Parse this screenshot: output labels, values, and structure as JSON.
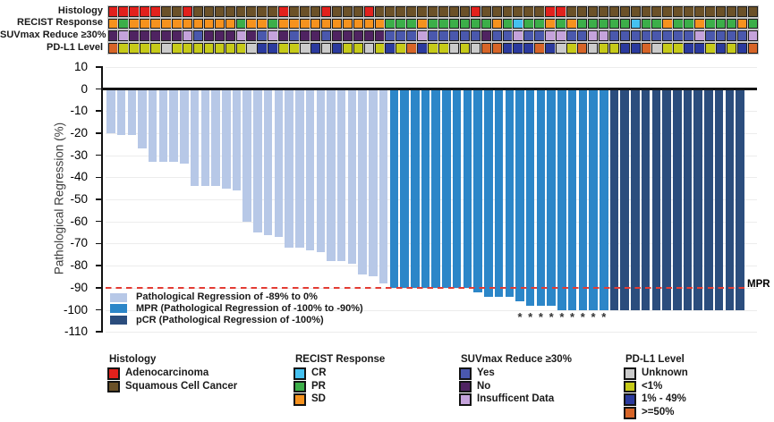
{
  "palette": {
    "adeno": "#E2211C",
    "squam": "#6B5128",
    "cr": "#45C1F0",
    "pr": "#3CAE49",
    "sd": "#F6921E",
    "suv_yes": "#4A58AD",
    "suv_no": "#4F2361",
    "suv_insuf": "#C5A3DB",
    "pdl1_unknown": "#CBCBCB",
    "pdl1_lt1": "#C6CA19",
    "pdl1_1_49": "#2B3A9E",
    "pdl1_ge50": "#D76528",
    "bar_light": "#B7C8E7",
    "bar_mpr": "#2C86C8",
    "bar_pcr": "#2B4D7D"
  },
  "tracks": {
    "rows": [
      {
        "id": "histology",
        "label": "Histology",
        "cells": [
          "adeno",
          "adeno",
          "adeno",
          "adeno",
          "adeno",
          "squam",
          "squam",
          "adeno",
          "squam",
          "squam",
          "squam",
          "squam",
          "squam",
          "squam",
          "squam",
          "squam",
          "adeno",
          "squam",
          "squam",
          "squam",
          "adeno",
          "squam",
          "squam",
          "squam",
          "adeno",
          "squam",
          "squam",
          "squam",
          "squam",
          "squam",
          "squam",
          "squam",
          "squam",
          "squam",
          "adeno",
          "squam",
          "squam",
          "squam",
          "squam",
          "squam",
          "squam",
          "adeno",
          "adeno",
          "squam",
          "squam",
          "squam",
          "squam",
          "squam",
          "squam",
          "squam",
          "squam",
          "squam",
          "squam",
          "squam",
          "squam",
          "squam",
          "squam",
          "squam",
          "squam",
          "squam",
          "squam"
        ]
      },
      {
        "id": "recist",
        "label": "RECIST Response",
        "cells": [
          "sd",
          "pr",
          "sd",
          "sd",
          "sd",
          "sd",
          "sd",
          "sd",
          "sd",
          "sd",
          "sd",
          "sd",
          "pr",
          "sd",
          "sd",
          "pr",
          "sd",
          "sd",
          "sd",
          "sd",
          "sd",
          "sd",
          "sd",
          "sd",
          "sd",
          "sd",
          "pr",
          "pr",
          "pr",
          "sd",
          "pr",
          "pr",
          "pr",
          "pr",
          "pr",
          "pr",
          "sd",
          "pr",
          "cr",
          "pr",
          "pr",
          "sd",
          "pr",
          "sd",
          "pr",
          "pr",
          "pr",
          "pr",
          "pr",
          "cr",
          "pr",
          "pr",
          "sd",
          "pr",
          "pr",
          "sd",
          "pr",
          "pr",
          "pr",
          "sd",
          "pr"
        ]
      },
      {
        "id": "suvmax",
        "label": "SUVmax Reduce ≥30%",
        "cells": [
          "suv_no",
          "suv_insuf",
          "suv_no",
          "suv_no",
          "suv_no",
          "suv_no",
          "suv_no",
          "suv_insuf",
          "suv_yes",
          "suv_no",
          "suv_no",
          "suv_no",
          "suv_insuf",
          "suv_no",
          "suv_yes",
          "suv_insuf",
          "suv_no",
          "suv_yes",
          "suv_no",
          "suv_no",
          "suv_yes",
          "suv_no",
          "suv_no",
          "suv_no",
          "suv_no",
          "suv_no",
          "suv_yes",
          "suv_yes",
          "suv_yes",
          "suv_insuf",
          "suv_yes",
          "suv_yes",
          "suv_yes",
          "suv_yes",
          "suv_yes",
          "suv_no",
          "suv_yes",
          "suv_yes",
          "suv_insuf",
          "suv_yes",
          "suv_yes",
          "suv_insuf",
          "suv_insuf",
          "suv_yes",
          "suv_yes",
          "suv_insuf",
          "suv_insuf",
          "suv_yes",
          "suv_yes",
          "suv_yes",
          "suv_yes",
          "suv_yes",
          "suv_yes",
          "suv_yes",
          "suv_yes",
          "suv_insuf",
          "suv_yes",
          "suv_yes",
          "suv_yes",
          "suv_yes",
          "suv_insuf"
        ]
      },
      {
        "id": "pdl1",
        "label": "PD-L1 Level",
        "cells": [
          "pdl1_ge50",
          "pdl1_lt1",
          "pdl1_lt1",
          "pdl1_lt1",
          "pdl1_lt1",
          "pdl1_unknown",
          "pdl1_lt1",
          "pdl1_lt1",
          "pdl1_lt1",
          "pdl1_lt1",
          "pdl1_lt1",
          "pdl1_lt1",
          "pdl1_lt1",
          "pdl1_unknown",
          "pdl1_1_49",
          "pdl1_1_49",
          "pdl1_lt1",
          "pdl1_lt1",
          "pdl1_unknown",
          "pdl1_1_49",
          "pdl1_unknown",
          "pdl1_1_49",
          "pdl1_lt1",
          "pdl1_lt1",
          "pdl1_unknown",
          "pdl1_lt1",
          "pdl1_1_49",
          "pdl1_lt1",
          "pdl1_ge50",
          "pdl1_1_49",
          "pdl1_lt1",
          "pdl1_lt1",
          "pdl1_unknown",
          "pdl1_lt1",
          "pdl1_unknown",
          "pdl1_ge50",
          "pdl1_ge50",
          "pdl1_1_49",
          "pdl1_1_49",
          "pdl1_1_49",
          "pdl1_ge50",
          "pdl1_1_49",
          "pdl1_unknown",
          "pdl1_lt1",
          "pdl1_ge50",
          "pdl1_unknown",
          "pdl1_lt1",
          "pdl1_lt1",
          "pdl1_1_49",
          "pdl1_1_49",
          "pdl1_ge50",
          "pdl1_unknown",
          "pdl1_lt1",
          "pdl1_lt1",
          "pdl1_1_49",
          "pdl1_1_49",
          "pdl1_lt1",
          "pdl1_1_49",
          "pdl1_lt1",
          "pdl1_1_49",
          "pdl1_ge50"
        ]
      }
    ]
  },
  "chart_data": {
    "type": "bar",
    "title": "",
    "ylabel": "Pathological Regression (%)",
    "ylim": [
      -110,
      10
    ],
    "yticks": [
      10,
      0,
      -10,
      -20,
      -30,
      -40,
      -50,
      -60,
      -70,
      -80,
      -90,
      -100,
      -110
    ],
    "grid": true,
    "reference_line": {
      "y": -90,
      "label": "MPR",
      "color": "#E33B33",
      "style": "dashed"
    },
    "bars": [
      {
        "v": -20,
        "g": "light"
      },
      {
        "v": -21,
        "g": "light"
      },
      {
        "v": -21,
        "g": "light"
      },
      {
        "v": -27,
        "g": "light"
      },
      {
        "v": -33,
        "g": "light"
      },
      {
        "v": -33,
        "g": "light"
      },
      {
        "v": -33,
        "g": "light"
      },
      {
        "v": -34,
        "g": "light"
      },
      {
        "v": -44,
        "g": "light"
      },
      {
        "v": -44,
        "g": "light"
      },
      {
        "v": -44,
        "g": "light"
      },
      {
        "v": -45,
        "g": "light"
      },
      {
        "v": -46,
        "g": "light"
      },
      {
        "v": -60,
        "g": "light"
      },
      {
        "v": -65,
        "g": "light"
      },
      {
        "v": -66,
        "g": "light"
      },
      {
        "v": -67,
        "g": "light"
      },
      {
        "v": -72,
        "g": "light"
      },
      {
        "v": -72,
        "g": "light"
      },
      {
        "v": -73,
        "g": "light"
      },
      {
        "v": -74,
        "g": "light"
      },
      {
        "v": -78,
        "g": "light"
      },
      {
        "v": -78,
        "g": "light"
      },
      {
        "v": -79,
        "g": "light"
      },
      {
        "v": -84,
        "g": "light"
      },
      {
        "v": -85,
        "g": "light"
      },
      {
        "v": -88,
        "g": "light"
      },
      {
        "v": -90,
        "g": "mpr"
      },
      {
        "v": -90,
        "g": "mpr"
      },
      {
        "v": -90,
        "g": "mpr"
      },
      {
        "v": -90,
        "g": "mpr"
      },
      {
        "v": -90,
        "g": "mpr"
      },
      {
        "v": -90,
        "g": "mpr"
      },
      {
        "v": -90,
        "g": "mpr"
      },
      {
        "v": -90,
        "g": "mpr"
      },
      {
        "v": -92,
        "g": "mpr"
      },
      {
        "v": -94,
        "g": "mpr"
      },
      {
        "v": -94,
        "g": "mpr"
      },
      {
        "v": -94,
        "g": "mpr"
      },
      {
        "v": -96,
        "g": "mpr",
        "star": true
      },
      {
        "v": -98,
        "g": "mpr",
        "star": true
      },
      {
        "v": -98,
        "g": "mpr",
        "star": true
      },
      {
        "v": -98,
        "g": "mpr",
        "star": true
      },
      {
        "v": -100,
        "g": "mpr",
        "star": true
      },
      {
        "v": -100,
        "g": "mpr",
        "star": true
      },
      {
        "v": -100,
        "g": "mpr",
        "star": true
      },
      {
        "v": -100,
        "g": "mpr",
        "star": true
      },
      {
        "v": -100,
        "g": "mpr",
        "star": true
      },
      {
        "v": -100,
        "g": "pcr"
      },
      {
        "v": -100,
        "g": "pcr"
      },
      {
        "v": -100,
        "g": "pcr"
      },
      {
        "v": -100,
        "g": "pcr"
      },
      {
        "v": -100,
        "g": "pcr"
      },
      {
        "v": -100,
        "g": "pcr"
      },
      {
        "v": -100,
        "g": "pcr"
      },
      {
        "v": -100,
        "g": "pcr"
      },
      {
        "v": -100,
        "g": "pcr"
      },
      {
        "v": -100,
        "g": "pcr"
      },
      {
        "v": -100,
        "g": "pcr"
      },
      {
        "v": -100,
        "g": "pcr"
      },
      {
        "v": -100,
        "g": "pcr"
      }
    ],
    "star_marker": "*",
    "legend_position": "inside-bottom-left",
    "legend": [
      {
        "color_key": "bar_light",
        "label": "Pathological Regression of -89% to 0%"
      },
      {
        "color_key": "bar_mpr",
        "label": "MPR (Pathological Regression of -100% to -90%)"
      },
      {
        "color_key": "bar_pcr",
        "label": "pCR (Pathological Regression of -100%)"
      }
    ]
  },
  "bottom_legend": {
    "groups": [
      {
        "title": "Histology",
        "items": [
          {
            "key": "adeno",
            "label": "Adenocarcinoma"
          },
          {
            "key": "squam",
            "label": "Squamous Cell Cancer"
          }
        ]
      },
      {
        "title": "RECIST Response",
        "items": [
          {
            "key": "cr",
            "label": "CR"
          },
          {
            "key": "pr",
            "label": "PR"
          },
          {
            "key": "sd",
            "label": "SD"
          }
        ]
      },
      {
        "title": "SUVmax Reduce ≥30%",
        "items": [
          {
            "key": "suv_yes",
            "label": "Yes"
          },
          {
            "key": "suv_no",
            "label": "No"
          },
          {
            "key": "suv_insuf",
            "label": "Insufficent Data"
          }
        ]
      },
      {
        "title": "PD-L1 Level",
        "items": [
          {
            "key": "pdl1_unknown",
            "label": "Unknown"
          },
          {
            "key": "pdl1_lt1",
            "label": "<1%"
          },
          {
            "key": "pdl1_1_49",
            "label": "1% - 49%"
          },
          {
            "key": "pdl1_ge50",
            "label": ">=50%"
          }
        ]
      }
    ]
  }
}
